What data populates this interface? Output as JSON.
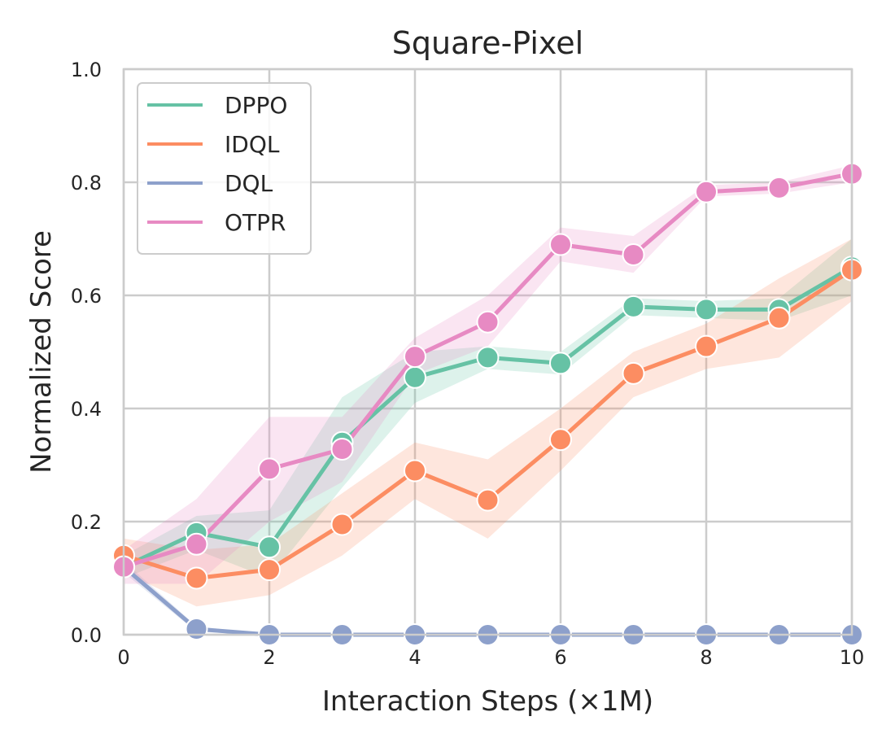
{
  "chart_data": {
    "type": "line",
    "title": "Square-Pixel",
    "xlabel": "Interaction Steps (×1M)",
    "ylabel": "Normalized Score",
    "xlim": [
      0,
      10
    ],
    "ylim": [
      0,
      1.0
    ],
    "xticks": [
      "0",
      "2",
      "4",
      "6",
      "8",
      "10"
    ],
    "yticks": [
      "0.0",
      "0.2",
      "0.4",
      "0.6",
      "0.8",
      "1.0"
    ],
    "grid": true,
    "legend_position": "top-left",
    "x": [
      0,
      1,
      2,
      3,
      4,
      5,
      6,
      7,
      8,
      9,
      10
    ],
    "series": [
      {
        "name": "DPPO",
        "color": "#66c2a5",
        "values": [
          0.12,
          0.18,
          0.155,
          0.34,
          0.455,
          0.49,
          0.48,
          0.58,
          0.575,
          0.575,
          0.65
        ],
        "lower": [
          0.1,
          0.15,
          0.1,
          0.26,
          0.41,
          0.47,
          0.46,
          0.565,
          0.56,
          0.555,
          0.6
        ],
        "upper": [
          0.14,
          0.21,
          0.22,
          0.42,
          0.5,
          0.51,
          0.5,
          0.595,
          0.59,
          0.595,
          0.7
        ]
      },
      {
        "name": "IDQL",
        "color": "#fc8d62",
        "values": [
          0.14,
          0.1,
          0.115,
          0.195,
          0.29,
          0.238,
          0.345,
          0.462,
          0.51,
          0.56,
          0.645
        ],
        "lower": [
          0.11,
          0.05,
          0.07,
          0.14,
          0.24,
          0.17,
          0.29,
          0.42,
          0.47,
          0.49,
          0.59
        ],
        "upper": [
          0.17,
          0.15,
          0.16,
          0.25,
          0.34,
          0.31,
          0.4,
          0.5,
          0.55,
          0.63,
          0.7
        ]
      },
      {
        "name": "DQL",
        "color": "#8da0cb",
        "values": [
          0.12,
          0.01,
          0.0,
          0.0,
          0.0,
          0.0,
          0.0,
          0.0,
          0.0,
          0.0,
          0.0
        ],
        "lower": [
          0.11,
          0.005,
          0.0,
          0.0,
          0.0,
          0.0,
          0.0,
          0.0,
          0.0,
          0.0,
          0.0
        ],
        "upper": [
          0.13,
          0.015,
          0.0,
          0.0,
          0.0,
          0.0,
          0.0,
          0.0,
          0.0,
          0.0,
          0.0
        ]
      },
      {
        "name": "OTPR",
        "color": "#e78ac3",
        "values": [
          0.12,
          0.16,
          0.293,
          0.328,
          0.492,
          0.553,
          0.69,
          0.672,
          0.783,
          0.79,
          0.815
        ],
        "lower": [
          0.09,
          0.09,
          0.2,
          0.27,
          0.46,
          0.51,
          0.66,
          0.64,
          0.775,
          0.78,
          0.8
        ],
        "upper": [
          0.15,
          0.24,
          0.385,
          0.385,
          0.525,
          0.6,
          0.72,
          0.705,
          0.795,
          0.8,
          0.83
        ]
      }
    ]
  }
}
